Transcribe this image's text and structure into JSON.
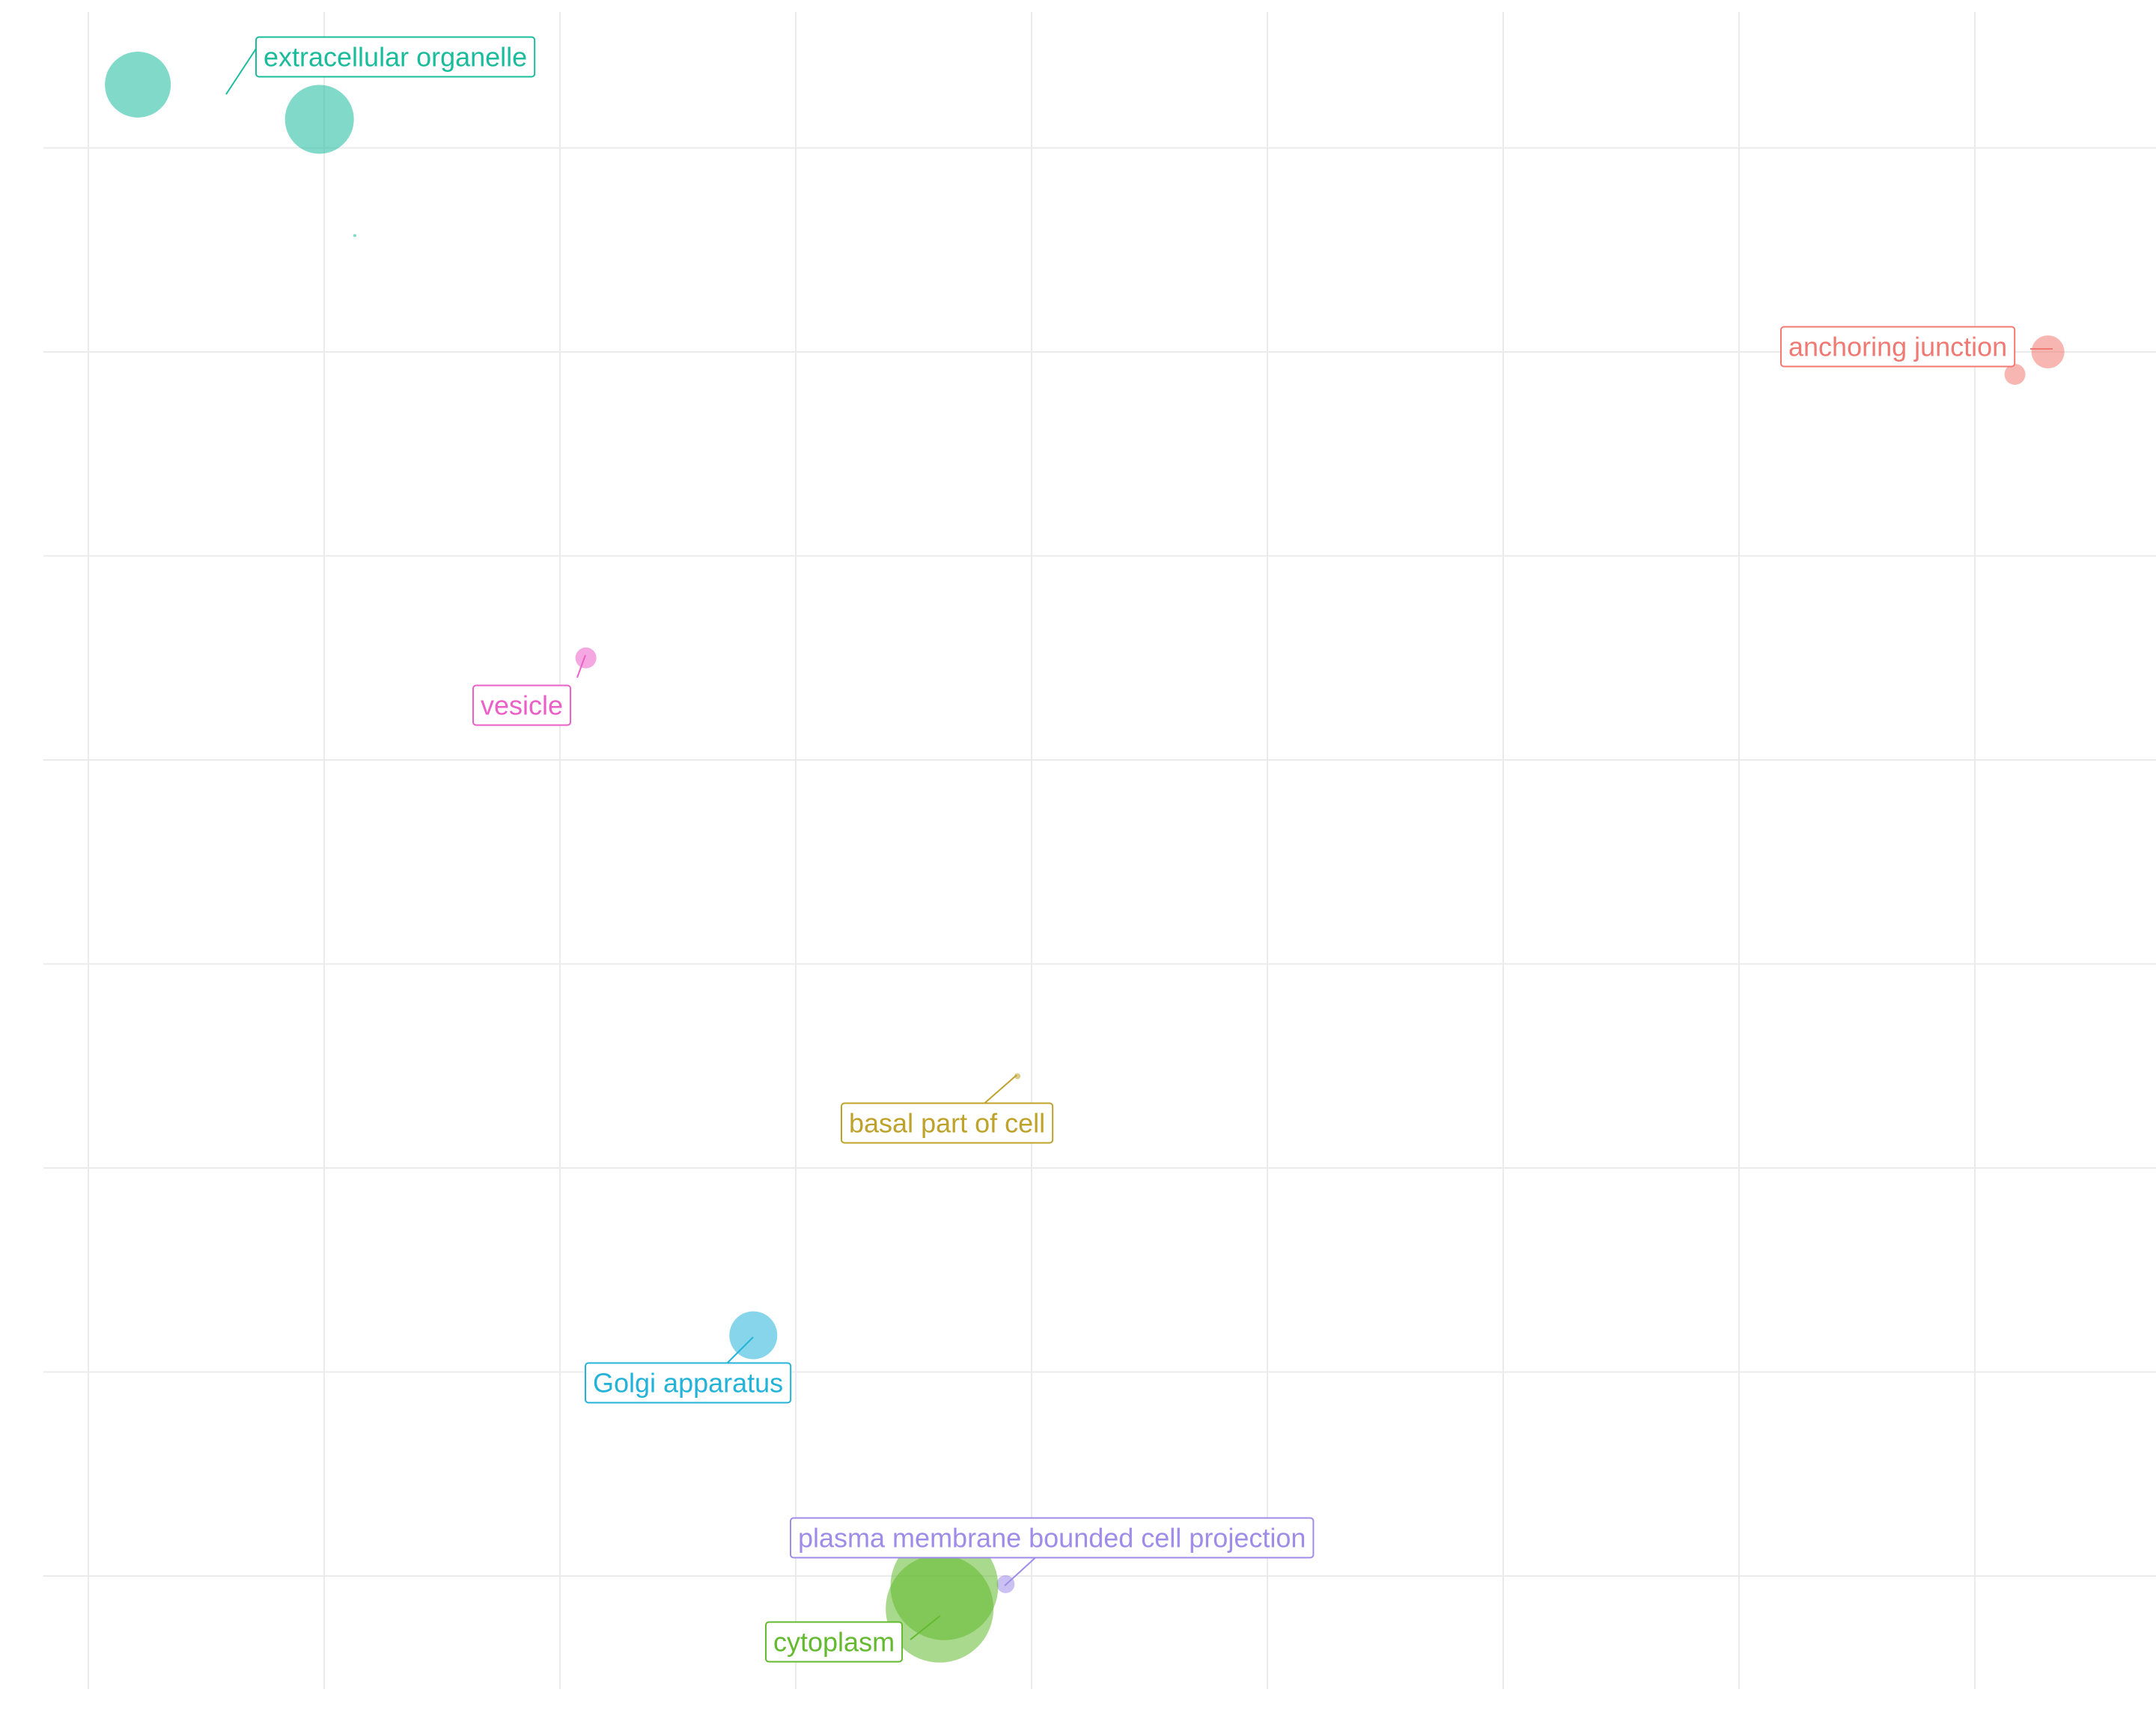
{
  "chart_data": {
    "type": "scatter",
    "title": "",
    "xlabel": "",
    "ylabel": "",
    "grid": true,
    "legend": "none",
    "xlim": [
      -0.19,
      8.78
    ],
    "ylim": [
      -0.55,
      7.68
    ],
    "x_gridlines": [
      0,
      1,
      2,
      3,
      4,
      5,
      6,
      7,
      8
    ],
    "y_gridlines": [
      0,
      1,
      2,
      3,
      4,
      5,
      6,
      7
    ],
    "x_minor_gridlines": [],
    "y_minor_gridlines": [],
    "series": [
      {
        "name": "",
        "color": "#1ABC9C",
        "label": "extracellular organelle",
        "points": [
          {
            "x": 0.21,
            "y": 7.31,
            "size": 44
          },
          {
            "x": 0.98,
            "y": 7.14,
            "size": 46
          },
          {
            "x": 1.13,
            "y": 6.57,
            "size": 2
          }
        ],
        "label_point": 1,
        "label_anchor": {
          "x": 0.72,
          "y": 7.25
        }
      },
      {
        "name": "",
        "color": "#F07A73",
        "label": "anchoring junction",
        "points": [
          {
            "x": 8.31,
            "y": 6.0,
            "size": 22
          },
          {
            "x": 8.17,
            "y": 5.89,
            "size": 14
          }
        ],
        "label_point": 0
      },
      {
        "name": "",
        "color": "#EC5FC8",
        "label": "vesicle",
        "points": [
          {
            "x": 2.11,
            "y": 4.5,
            "size": 14
          }
        ],
        "label_point": 0
      },
      {
        "name": "",
        "color": "#BFA22A",
        "label": "basal part of cell",
        "points": [
          {
            "x": 3.94,
            "y": 2.45,
            "size": 4
          }
        ],
        "label_point": 0
      },
      {
        "name": "",
        "color": "#23B3D9",
        "label": "Golgi apparatus",
        "points": [
          {
            "x": 2.82,
            "y": 1.18,
            "size": 32
          }
        ],
        "label_point": 0
      },
      {
        "name": "",
        "color": "#9F8CE8",
        "label": "plasma membrane bounded cell projection",
        "points": [
          {
            "x": 3.89,
            "y": -0.04,
            "size": 12
          }
        ],
        "label_point": 0
      },
      {
        "name": "",
        "color": "#63BA2F",
        "label": "cytoplasm",
        "points": [
          {
            "x": 3.63,
            "y": -0.05,
            "size": 72
          },
          {
            "x": 3.61,
            "y": -0.16,
            "size": 72
          }
        ],
        "label_point": 1
      }
    ]
  }
}
